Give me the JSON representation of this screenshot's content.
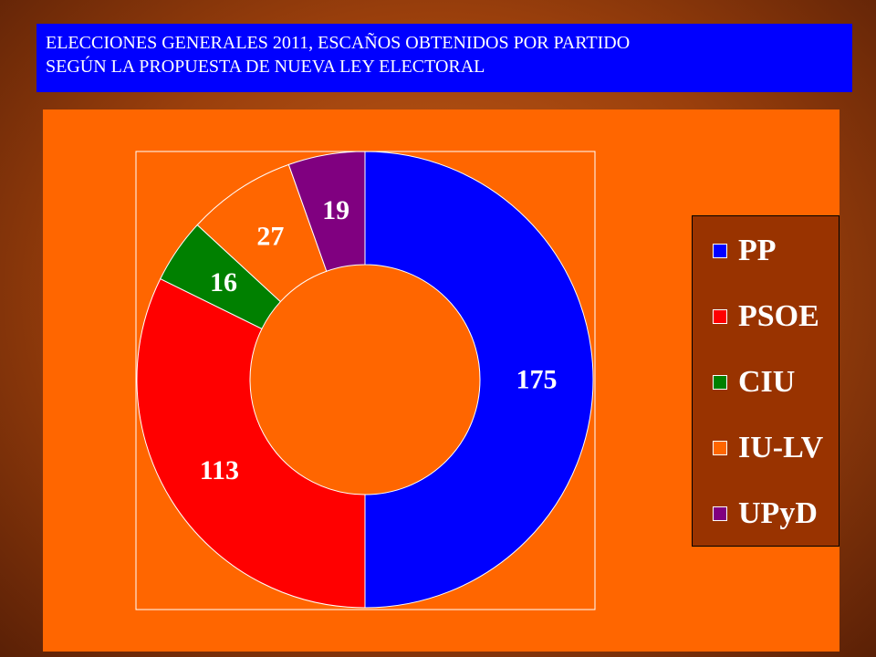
{
  "title_lines": [
    "ELECCIONES GENERALES 2011, ESCAÑOS OBTENIDOS POR PARTIDO",
    "SEGÚN LA PROPUESTA DE NUEVA LEY ELECTORAL"
  ],
  "chart_data": {
    "type": "pie",
    "variant": "donut",
    "title": "ELECCIONES GENERALES 2011, ESCAÑOS OBTENIDOS POR PARTIDO SEGÚN LA PROPUESTA DE NUEVA LEY ELECTORAL",
    "categories": [
      "PP",
      "PSOE",
      "CIU",
      "IU-LV",
      "UPyD"
    ],
    "values": [
      175,
      113,
      16,
      27,
      19
    ],
    "colors": [
      "#0000ff",
      "#ff0000",
      "#008000",
      "#ff6600",
      "#800080"
    ],
    "legend_position": "right",
    "plot_background": "#ff6600",
    "legend_background": "#993300"
  }
}
